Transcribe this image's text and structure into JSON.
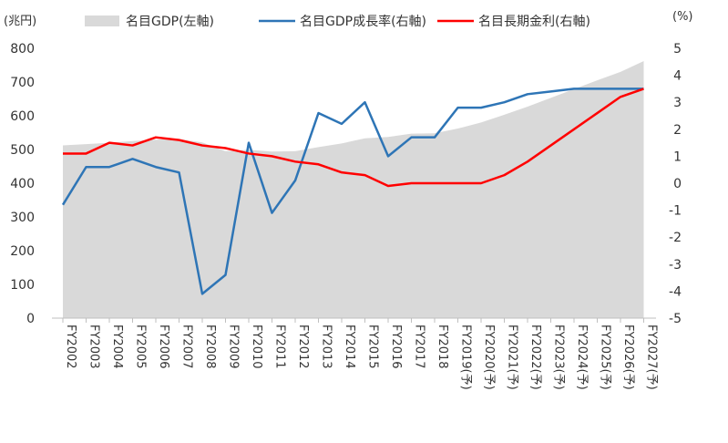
{
  "chart_data": {
    "type": "area",
    "title": "",
    "left_axis": {
      "unit_label": "(兆円)",
      "ylim": [
        0,
        800
      ],
      "ticks": [
        "0",
        "100",
        "200",
        "300",
        "400",
        "500",
        "600",
        "700",
        "800"
      ]
    },
    "right_axis": {
      "unit_label": "(%)",
      "ylim": [
        -5,
        5
      ],
      "ticks": [
        "-5",
        "-4",
        "-3",
        "-2",
        "-1",
        "0",
        "1",
        "2",
        "3",
        "4",
        "5"
      ]
    },
    "categories": [
      "FY2002",
      "FY2003",
      "FY2004",
      "FY2005",
      "FY2006",
      "FY2007",
      "FY2008",
      "FY2009",
      "FY2010",
      "FY2011",
      "FY2012",
      "FY2013",
      "FY2014",
      "FY2015",
      "FY2016",
      "FY2017",
      "FY2018",
      "FY2019(予)",
      "FY2020(予)",
      "FY2021(予)",
      "FY2022(予)",
      "FY2023(予)",
      "FY2024(予)",
      "FY2025(予)",
      "FY2026(予)",
      "FY2027(予)"
    ],
    "series": [
      {
        "name": "名目GDP(左軸)",
        "type": "area",
        "axis": "left",
        "color": "#d9d9d9",
        "values": [
          512,
          516,
          520,
          525,
          529,
          531,
          521,
          495,
          499,
          494,
          495,
          507,
          518,
          533,
          537,
          547,
          548,
          562,
          580,
          603,
          627,
          653,
          679,
          705,
          730,
          762
        ]
      },
      {
        "name": "名目GDP成長率(右軸)",
        "type": "line",
        "axis": "right",
        "color": "#2e75b6",
        "values": [
          -0.8,
          0.6,
          0.6,
          0.9,
          0.6,
          0.4,
          -4.1,
          -3.4,
          1.5,
          -1.1,
          0.1,
          2.6,
          2.2,
          3.0,
          1.0,
          1.7,
          1.7,
          2.8,
          2.8,
          3.0,
          3.3,
          3.4,
          3.5,
          3.5,
          3.5,
          3.5
        ]
      },
      {
        "name": "名目長期金利(右軸)",
        "type": "line",
        "axis": "right",
        "color": "#ff0000",
        "values": [
          1.1,
          1.1,
          1.5,
          1.4,
          1.7,
          1.6,
          1.4,
          1.3,
          1.1,
          1.0,
          0.8,
          0.7,
          0.4,
          0.3,
          -0.1,
          0.0,
          0.0,
          0.0,
          0.0,
          0.3,
          0.8,
          1.4,
          2.0,
          2.6,
          3.2,
          3.5
        ]
      }
    ],
    "legend_position": "top",
    "grid": false
  }
}
